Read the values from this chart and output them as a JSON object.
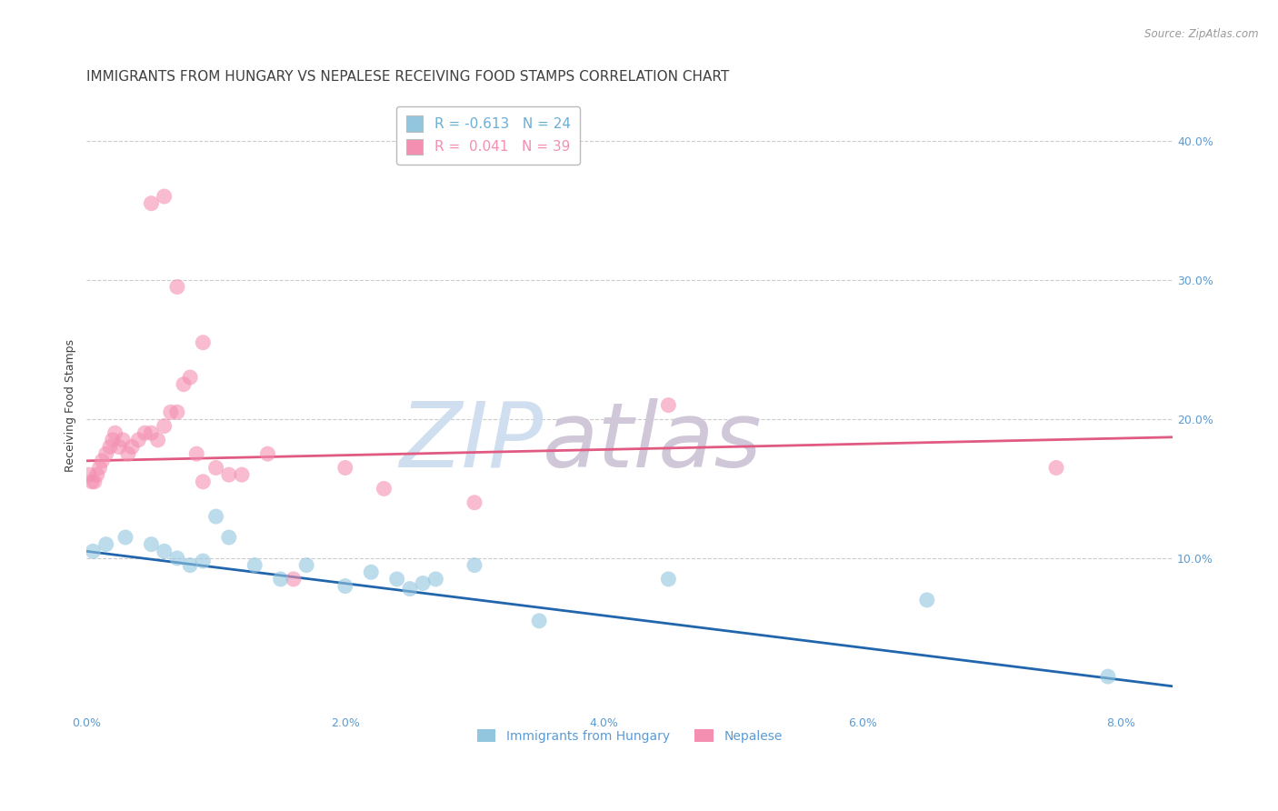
{
  "title": "IMMIGRANTS FROM HUNGARY VS NEPALESE RECEIVING FOOD STAMPS CORRELATION CHART",
  "source": "Source: ZipAtlas.com",
  "ylabel": "Receiving Food Stamps",
  "x_tick_labels": [
    "0.0%",
    "2.0%",
    "4.0%",
    "6.0%",
    "8.0%"
  ],
  "x_ticks": [
    0.0,
    2.0,
    4.0,
    6.0,
    8.0
  ],
  "y_tick_labels_right": [
    "10.0%",
    "20.0%",
    "30.0%",
    "40.0%"
  ],
  "y_ticks_right": [
    10.0,
    20.0,
    30.0,
    40.0
  ],
  "xlim": [
    0.0,
    8.4
  ],
  "ylim": [
    -1.0,
    43.0
  ],
  "legend_entries": [
    {
      "label": "R = -0.613   N = 24",
      "color": "#6baed6"
    },
    {
      "label": "R =  0.041   N = 39",
      "color": "#f48fb1"
    }
  ],
  "legend_labels_bottom": [
    "Immigrants from Hungary",
    "Nepalese"
  ],
  "blue_color": "#92c5de",
  "pink_color": "#f48fb1",
  "blue_line_color": "#2166ac",
  "pink_line_color": "#e05a82",
  "watermark_zip": "ZIP",
  "watermark_atlas": "atlas",
  "watermark_color_zip": "#d0dff0",
  "watermark_color_atlas": "#d0c8d8",
  "blue_scatter_x": [
    0.05,
    0.15,
    0.3,
    0.5,
    0.6,
    0.7,
    0.8,
    0.9,
    1.0,
    1.1,
    1.3,
    1.5,
    1.7,
    2.0,
    2.2,
    2.4,
    2.5,
    2.6,
    2.7,
    3.0,
    3.5,
    4.5,
    6.5,
    7.9
  ],
  "blue_scatter_y": [
    10.5,
    11.0,
    11.5,
    11.0,
    10.5,
    10.0,
    9.5,
    9.8,
    13.0,
    11.5,
    9.5,
    8.5,
    9.5,
    8.0,
    9.0,
    8.5,
    7.8,
    8.2,
    8.5,
    9.5,
    5.5,
    8.5,
    7.0,
    1.5
  ],
  "pink_scatter_x": [
    0.02,
    0.04,
    0.06,
    0.08,
    0.1,
    0.12,
    0.15,
    0.18,
    0.2,
    0.22,
    0.25,
    0.28,
    0.32,
    0.35,
    0.4,
    0.45,
    0.5,
    0.55,
    0.6,
    0.65,
    0.7,
    0.75,
    0.8,
    0.85,
    0.9,
    1.0,
    1.1,
    1.2,
    1.4,
    1.6,
    2.0,
    2.3,
    3.0,
    4.5,
    7.5,
    0.5,
    0.6,
    0.7,
    0.9
  ],
  "pink_scatter_y": [
    16.0,
    15.5,
    15.5,
    16.0,
    16.5,
    17.0,
    17.5,
    18.0,
    18.5,
    19.0,
    18.0,
    18.5,
    17.5,
    18.0,
    18.5,
    19.0,
    19.0,
    18.5,
    19.5,
    20.5,
    20.5,
    22.5,
    23.0,
    17.5,
    15.5,
    16.5,
    16.0,
    16.0,
    17.5,
    8.5,
    16.5,
    15.0,
    14.0,
    21.0,
    16.5,
    35.5,
    36.0,
    29.5,
    25.5
  ],
  "blue_trend_x": [
    0.0,
    8.4
  ],
  "blue_trend_y": [
    10.5,
    0.8
  ],
  "pink_trend_x": [
    0.0,
    8.4
  ],
  "pink_trend_y": [
    17.0,
    18.7
  ],
  "background_color": "#ffffff",
  "grid_color": "#cccccc",
  "axis_label_color": "#5b9bd5",
  "title_color": "#404040",
  "title_fontsize": 11,
  "axis_label_fontsize": 9,
  "tick_fontsize": 9,
  "scatter_size": 150,
  "scatter_alpha": 0.6
}
